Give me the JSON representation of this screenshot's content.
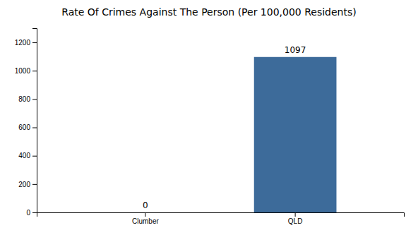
{
  "chart_data": {
    "type": "bar",
    "title": "Rate Of Crimes Against The Person (Per 100,000 Residents)",
    "categories": [
      "Clumber",
      "QLD"
    ],
    "values": [
      0,
      1097
    ],
    "colors": [
      "#3d6b9a",
      "#3d6b9a"
    ],
    "ylim": [
      0,
      1300
    ],
    "yticks": [
      0,
      200,
      400,
      600,
      800,
      1000,
      1200
    ],
    "grid": false,
    "data_labels": true
  }
}
